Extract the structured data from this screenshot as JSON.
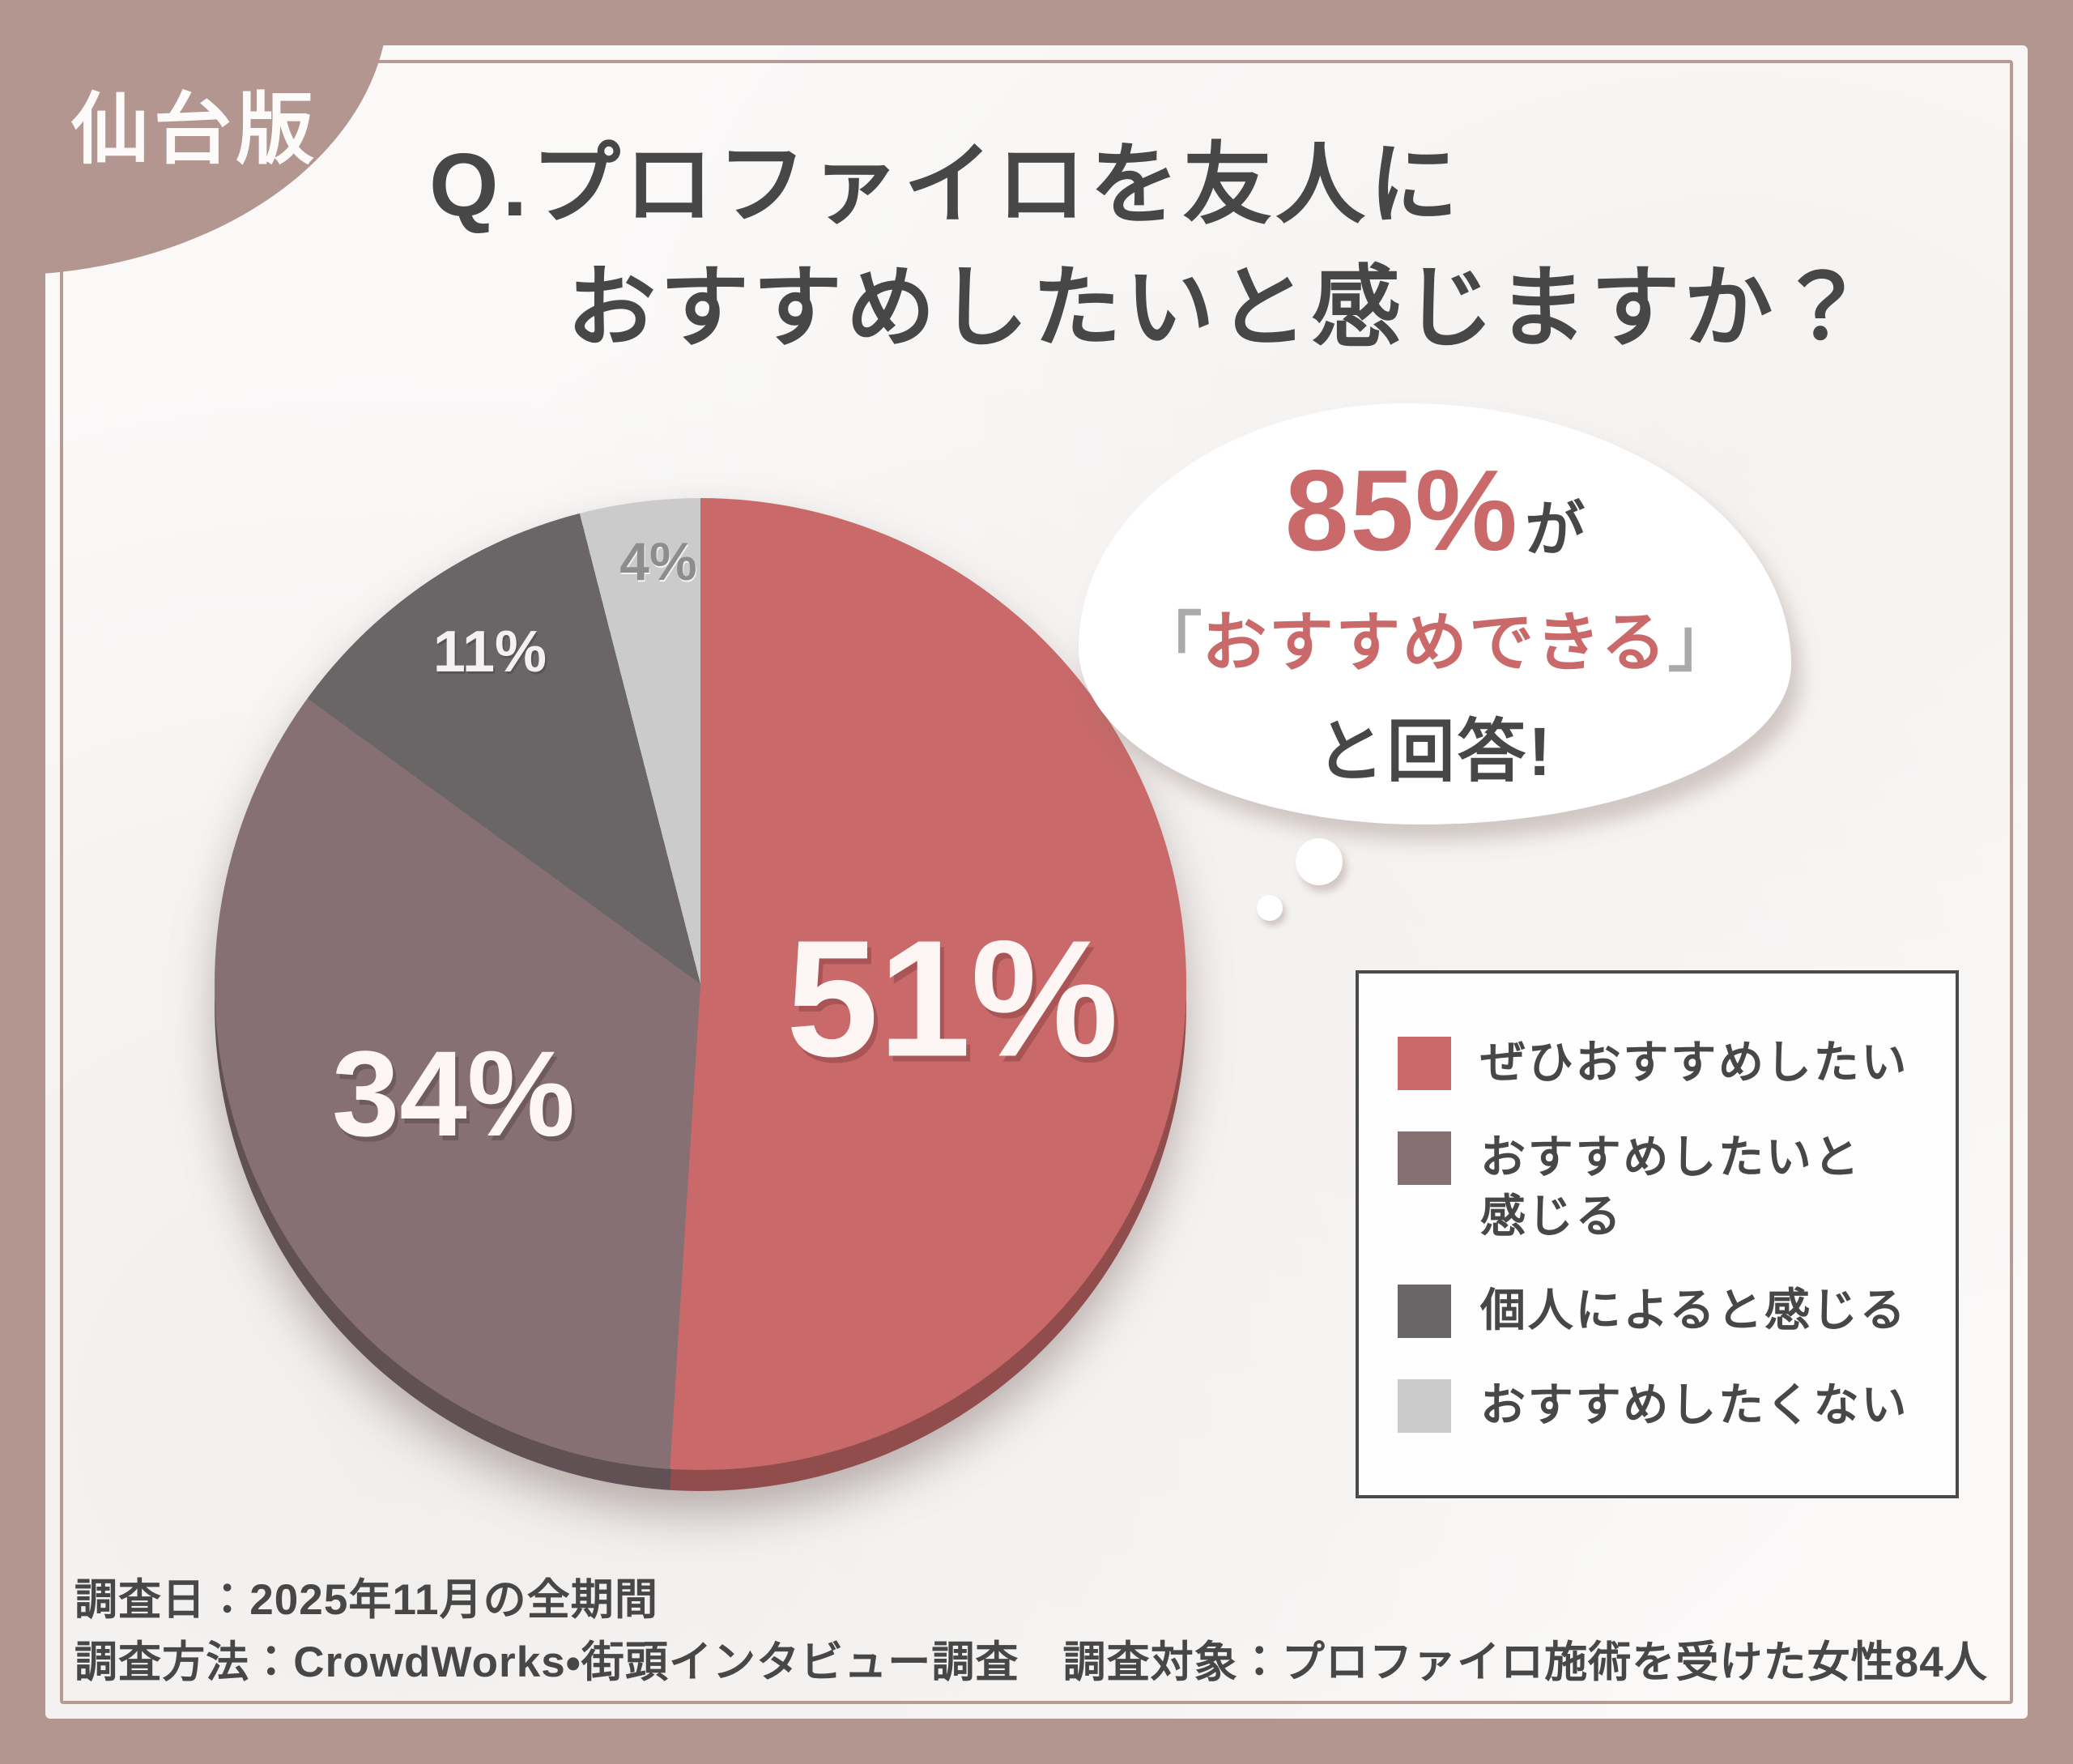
{
  "badge": {
    "label": "仙台版"
  },
  "title": {
    "line1": "Q.プロファイロを友人に",
    "line2": "おすすめしたいと感じますか？"
  },
  "chart_data": {
    "type": "pie",
    "title": "プロファイロを友人におすすめしたいと感じますか？",
    "categories": [
      "ぜひおすすめしたい",
      "おすすめしたいと感じる",
      "個人によると感じる",
      "おすすめしたくない"
    ],
    "values": [
      51,
      34,
      11,
      4
    ],
    "unit": "%",
    "colors": [
      "#c96969",
      "#877074",
      "#6a6566",
      "#cbcbcb"
    ],
    "slice_labels": [
      "51%",
      "34%",
      "11%",
      "4%"
    ],
    "start_angle_deg": 0,
    "direction": "clockwise",
    "legend_position": "right"
  },
  "callout": {
    "stat": "85%",
    "stat_suffix": "が",
    "quote_open": "「",
    "quote_text": "おすすめできる",
    "quote_close": "」",
    "conclusion": "と回答!"
  },
  "legend": {
    "items": [
      {
        "label": "ぜひおすすめしたい",
        "color": "#c96969"
      },
      {
        "label": "おすすめしたいと\n感じる",
        "color": "#877074"
      },
      {
        "label": "個人によると感じる",
        "color": "#6a6566"
      },
      {
        "label": "おすすめしたくない",
        "color": "#cbcbcb"
      }
    ]
  },
  "footer": {
    "line1": "調査日：2025年11月の全期間",
    "line2": "調査方法：CrowdWorks・街頭インタビュー調査　調査対象：プロファイロ施術を受けた女性84人"
  },
  "theme": {
    "frame_color": "#b49691",
    "panel_color": "#faf9f8",
    "text_color": "#474747",
    "accent_color": "#c96969"
  }
}
